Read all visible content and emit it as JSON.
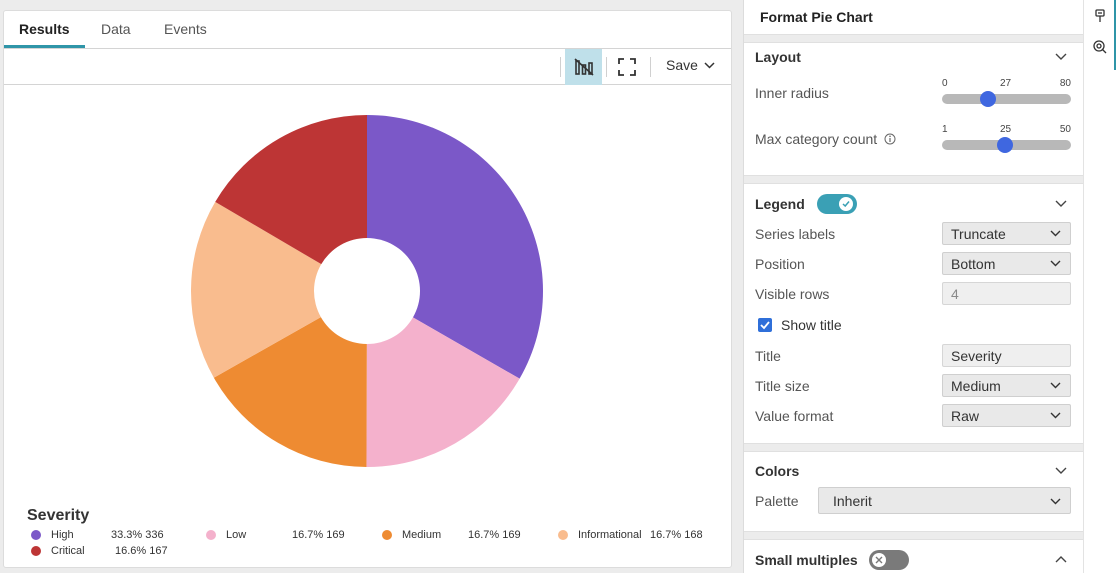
{
  "tabs": [
    {
      "label": "Results",
      "active": true
    },
    {
      "label": "Data",
      "active": false
    },
    {
      "label": "Events",
      "active": false
    }
  ],
  "toolbar": {
    "chart_icon": "bar-chart-icon",
    "fullscreen_icon": "fullscreen-icon",
    "save_label": "Save"
  },
  "chart_data": {
    "type": "pie",
    "inner_radius": 27,
    "categories": [
      "High",
      "Low",
      "Medium",
      "Informational",
      "Critical"
    ],
    "values": [
      336,
      169,
      169,
      168,
      167
    ],
    "percents": [
      "33.3%",
      "16.7%",
      "16.7%",
      "16.7%",
      "16.6%"
    ],
    "colors": [
      "#7b58c8",
      "#f4b1cc",
      "#ee8b32",
      "#f9bc8e",
      "#bd3535"
    ],
    "legend_title": "Severity",
    "legend_position": "bottom"
  },
  "legend": {
    "title": "Severity",
    "items": [
      {
        "label": "High",
        "percent": "33.3%",
        "value": "336",
        "color": "#7b58c8"
      },
      {
        "label": "Low",
        "percent": "16.7%",
        "value": "169",
        "color": "#f4b1cc"
      },
      {
        "label": "Medium",
        "percent": "16.7%",
        "value": "169",
        "color": "#ee8b32"
      },
      {
        "label": "Informational",
        "percent": "16.7%",
        "value": "168",
        "color": "#f9bc8e"
      },
      {
        "label": "Critical",
        "percent": "16.6%",
        "value": "167",
        "color": "#bd3535"
      }
    ]
  },
  "panel": {
    "title": "Format Pie Chart",
    "layout": {
      "title": "Layout",
      "inner_radius": {
        "label": "Inner radius",
        "min": "0",
        "value": "27",
        "max": "80",
        "fraction": 0.3375
      },
      "max_category_count": {
        "label": "Max category count",
        "min": "1",
        "value": "25",
        "max": "50",
        "fraction": 0.49
      }
    },
    "legend": {
      "title": "Legend",
      "enabled": true,
      "series_labels": {
        "label": "Series labels",
        "value": "Truncate"
      },
      "position": {
        "label": "Position",
        "value": "Bottom"
      },
      "visible_rows": {
        "label": "Visible rows",
        "value": "4"
      },
      "show_title": {
        "label": "Show title",
        "checked": true
      },
      "title_field": {
        "label": "Title",
        "value": "Severity"
      },
      "title_size": {
        "label": "Title size",
        "value": "Medium"
      },
      "value_format": {
        "label": "Value format",
        "value": "Raw"
      }
    },
    "colors": {
      "title": "Colors",
      "palette": {
        "label": "Palette",
        "value": "Inherit"
      }
    },
    "small_multiples": {
      "title": "Small multiples",
      "enabled": false
    }
  },
  "accent_color": "#2f95a8"
}
